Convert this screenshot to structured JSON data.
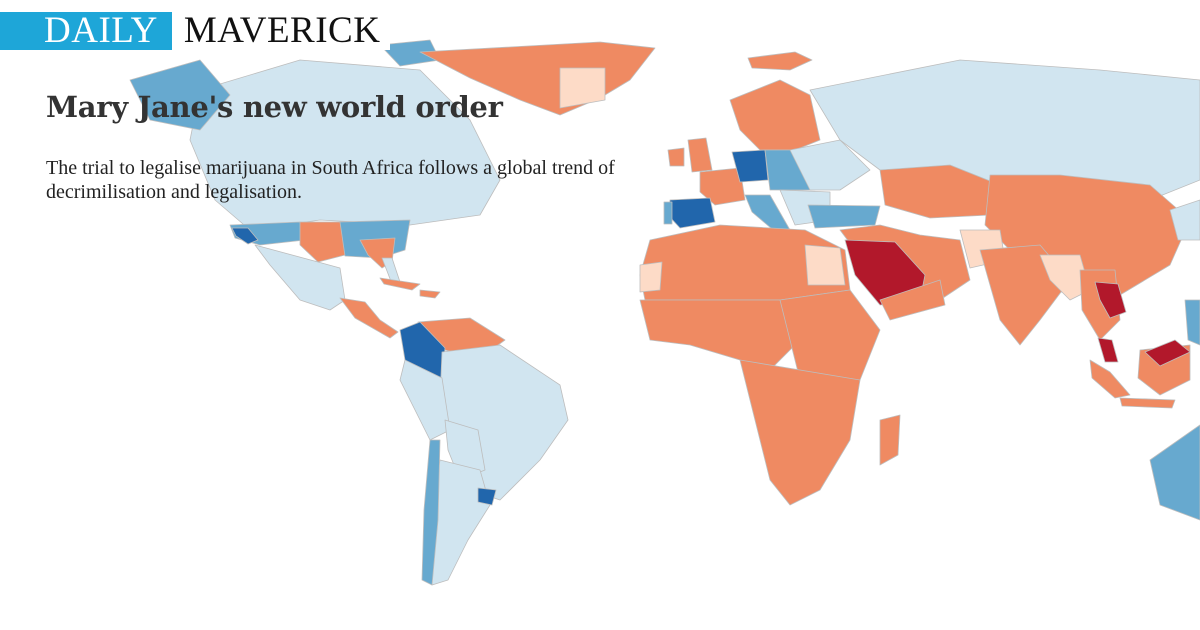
{
  "header": {
    "logo_part1": "DAILY",
    "logo_part2": "MAVERICK"
  },
  "article": {
    "title": "Mary Jane's new world order",
    "description": "The trial to legalise marijuana in South Africa follows a global trend of decrimilisation and legalisation."
  },
  "colors": {
    "logo_accent": "#1ea6d8",
    "legal": "#2166ac",
    "decriminalised": "#67a9cf",
    "partially_relaxed": "#d1e5f0",
    "unknown": "#fddbc7",
    "illegal": "#ef8a62",
    "strict_penalties": "#b2182b"
  },
  "map": {
    "projection": "equirectangular",
    "categories": {
      "legal": [
        "Colombia",
        "Uruguay",
        "Germany",
        "Spain",
        "California (US)"
      ],
      "decriminalised": [
        "Chile",
        "Portugal",
        "Italy",
        "Czech Republic",
        "Turkey",
        "Greenland (north)",
        "Alaska",
        "Australia",
        "Several US states"
      ],
      "partially_relaxed": [
        "Brazil",
        "Argentina",
        "Peru",
        "Bolivia",
        "Mexico",
        "Canada",
        "Russia",
        "Ecuador",
        "France",
        "Poland"
      ],
      "unknown": [
        "Egypt",
        "Western Sahara",
        "Afghanistan",
        "Bangladesh",
        "Myanmar"
      ],
      "illegal": [
        "Africa (most)",
        "China",
        "India",
        "Kazakhstan",
        "Iran",
        "Scandinavia",
        "Venezuela",
        "Indonesia",
        "Greenland (south)",
        "Madagascar",
        "UK"
      ],
      "strict_penalties": [
        "Saudi Arabia",
        "Yemen",
        "Oman",
        "UAE",
        "Laos",
        "Malaysia"
      ]
    }
  }
}
